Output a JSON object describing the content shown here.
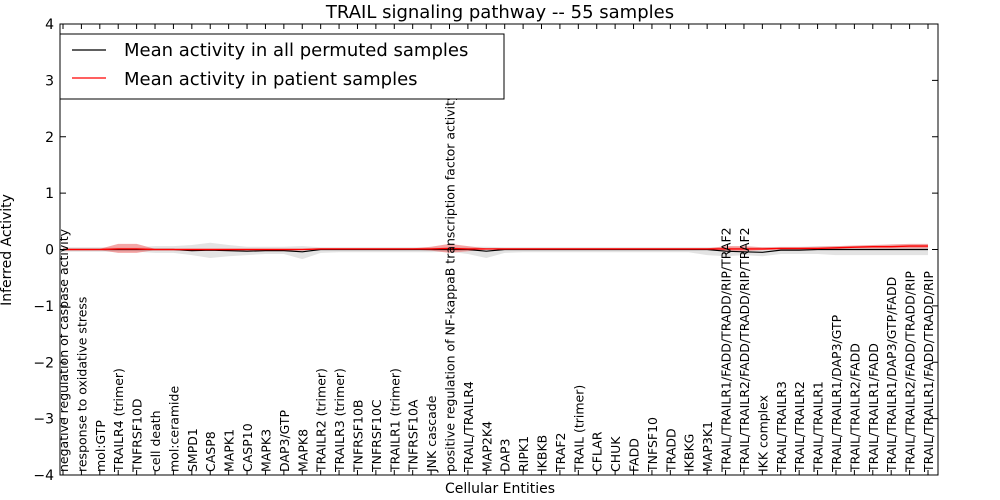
{
  "chart_data": {
    "type": "line",
    "title": "TRAIL signaling pathway -- 55 samples",
    "xlabel": "Cellular Entities",
    "ylabel": "Inferred Activity",
    "ylim": [
      -4,
      4
    ],
    "yticks": [
      "4",
      "3",
      "2",
      "1",
      "0",
      "−1",
      "−2",
      "−3",
      "−4"
    ],
    "ytick_values": [
      4,
      3,
      2,
      1,
      0,
      -1,
      -2,
      -3,
      -4
    ],
    "legend_position": "top-left",
    "grid": false,
    "categories": [
      "negative regulation of caspase activity",
      "response to oxidative stress",
      "mol:GTP",
      "TRAILR4 (trimer)",
      "TNFRSF10D",
      "cell death",
      "mol:ceramide",
      "SMPD1",
      "CASP8",
      "MAPK1",
      "CASP10",
      "MAPK3",
      "DAP3/GTP",
      "MAPK8",
      "TRAILR2 (trimer)",
      "TRAILR3 (trimer)",
      "TNFRSF10B",
      "TNFRSF10C",
      "TRAILR1 (trimer)",
      "TNFRSF10A",
      "JNK cascade",
      "positive regulation of NF-kappaB transcription factor activity",
      "TRAIL/TRAILR4",
      "MAP2K4",
      "DAP3",
      "RIPK1",
      "IKBKB",
      "TRAF2",
      "TRAIL (trimer)",
      "CFLAR",
      "CHUK",
      "FADD",
      "TNFSF10",
      "TRADD",
      "IKBKG",
      "MAP3K1",
      "TRAIL/TRAILR1/FADD/TRADD/RIP/TRAF2",
      "TRAIL/TRAILR2/FADD/TRADD/RIP/TRAF2",
      "IKK complex",
      "TRAIL/TRAILR3",
      "TRAIL/TRAILR2",
      "TRAIL/TRAILR1",
      "TRAIL/TRAILR1/DAP3/GTP",
      "TRAIL/TRAILR2/FADD",
      "TRAIL/TRAILR1/FADD",
      "TRAIL/TRAILR1/DAP3/GTP/FADD",
      "TRAIL/TRAILR2/FADD/TRADD/RIP",
      "TRAIL/TRAILR1/FADD/TRADD/RIP"
    ],
    "series": [
      {
        "name": "Mean activity in all permuted samples",
        "color": "#000000",
        "band_color": "#cccccc",
        "values": [
          0,
          0,
          0,
          0,
          0,
          0,
          0,
          -0.02,
          -0.01,
          -0.02,
          -0.03,
          -0.02,
          -0.02,
          -0.04,
          0,
          0,
          0,
          0,
          0,
          0,
          0,
          0,
          0,
          -0.03,
          0,
          0,
          0,
          0,
          0,
          0,
          0,
          0,
          0,
          0,
          0,
          0,
          -0.03,
          -0.04,
          -0.05,
          -0.01,
          -0.01,
          0,
          0,
          0,
          0,
          0,
          0,
          0
        ],
        "band_lower": [
          -0.04,
          -0.04,
          -0.04,
          -0.04,
          -0.04,
          -0.06,
          -0.06,
          -0.1,
          -0.15,
          -0.12,
          -0.1,
          -0.08,
          -0.08,
          -0.17,
          -0.06,
          -0.05,
          -0.05,
          -0.05,
          -0.05,
          -0.05,
          -0.05,
          -0.04,
          -0.08,
          -0.15,
          -0.06,
          -0.05,
          -0.05,
          -0.05,
          -0.05,
          -0.05,
          -0.05,
          -0.05,
          -0.05,
          -0.05,
          -0.05,
          -0.1,
          -0.12,
          -0.1,
          -0.12,
          -0.08,
          -0.08,
          -0.08,
          -0.1,
          -0.1,
          -0.1,
          -0.1,
          -0.1,
          -0.1
        ],
        "band_upper": [
          0.04,
          0.04,
          0.04,
          0.04,
          0.04,
          0.06,
          0.06,
          0.08,
          0.12,
          0.08,
          0.05,
          0.05,
          0.05,
          0.06,
          0.04,
          0.04,
          0.04,
          0.04,
          0.04,
          0.04,
          0.04,
          0.04,
          0.05,
          0.05,
          0.04,
          0.04,
          0.04,
          0.04,
          0.04,
          0.04,
          0.04,
          0.04,
          0.04,
          0.04,
          0.04,
          0.04,
          0.04,
          0.04,
          0.04,
          0.05,
          0.05,
          0.06,
          0.06,
          0.07,
          0.07,
          0.08,
          0.08,
          0.09
        ]
      },
      {
        "name": "Mean activity in patient samples",
        "color": "#ff0000",
        "band_color": "#f08080",
        "values": [
          0,
          0,
          0,
          0.01,
          0.01,
          0,
          0,
          0,
          0,
          0,
          0,
          0,
          0,
          0,
          0.01,
          0.01,
          0.01,
          0.01,
          0.01,
          0.01,
          0.01,
          0.02,
          0.01,
          0.01,
          0.01,
          0.01,
          0.01,
          0.01,
          0.01,
          0.01,
          0.01,
          0.01,
          0.01,
          0.01,
          0.01,
          0.01,
          0.01,
          0.01,
          0.01,
          0.02,
          0.02,
          0.02,
          0.03,
          0.04,
          0.05,
          0.05,
          0.06,
          0.06
        ],
        "band_lower": [
          -0.01,
          -0.01,
          -0.01,
          -0.06,
          -0.06,
          -0.01,
          -0.01,
          -0.01,
          -0.01,
          -0.01,
          -0.01,
          -0.01,
          -0.01,
          -0.01,
          0,
          0,
          0,
          0,
          0,
          0,
          -0.02,
          -0.06,
          -0.03,
          0,
          0,
          0,
          0,
          0,
          0,
          0,
          0,
          0,
          0,
          0,
          0,
          0,
          -0.02,
          -0.03,
          -0.01,
          0,
          0,
          0.01,
          0.01,
          0.02,
          0.02,
          0.02,
          0.02,
          0.02
        ],
        "band_upper": [
          0.01,
          0.01,
          0.01,
          0.1,
          0.1,
          0.01,
          0.01,
          0.01,
          0.01,
          0.01,
          0.01,
          0.01,
          0.01,
          0.01,
          0.02,
          0.02,
          0.02,
          0.02,
          0.02,
          0.02,
          0.05,
          0.1,
          0.06,
          0.02,
          0.02,
          0.02,
          0.02,
          0.02,
          0.02,
          0.02,
          0.02,
          0.02,
          0.02,
          0.02,
          0.02,
          0.02,
          0.06,
          0.06,
          0.04,
          0.04,
          0.04,
          0.05,
          0.06,
          0.07,
          0.08,
          0.09,
          0.1,
          0.1
        ]
      }
    ]
  }
}
